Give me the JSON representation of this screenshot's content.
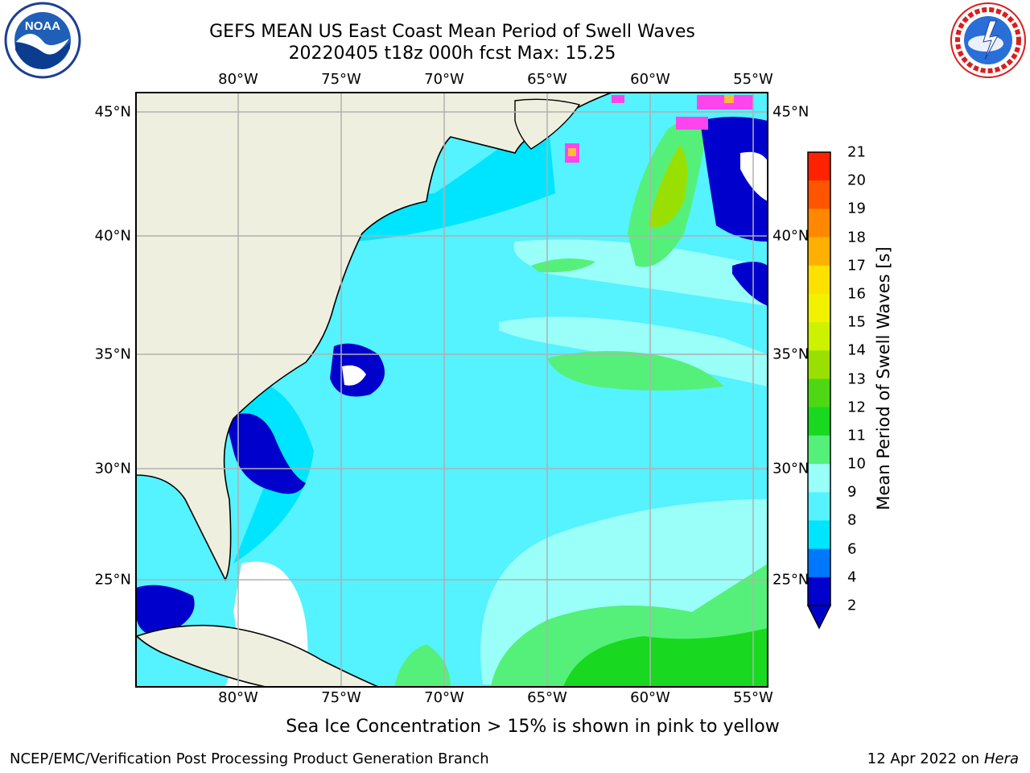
{
  "title": {
    "line1": "GEFS MEAN US East Coast Mean Period of Swell Waves",
    "line2": "20220405 t18z 000h fcst   Max: 15.25"
  },
  "logos": {
    "left": "NOAA",
    "right": "NATIONAL WEATHER SERVICE"
  },
  "map": {
    "lon_ticks": [
      "80°W",
      "75°W",
      "70°W",
      "65°W",
      "60°W",
      "55°W"
    ],
    "lat_ticks": [
      "45°N",
      "40°N",
      "35°N",
      "30°N",
      "25°N"
    ],
    "colors": {
      "land": "#efefdf",
      "grid": "#b0b0b0",
      "coast": "#000000",
      "ice_pink": "#ff44ee",
      "ice_orange": "#ffbb33"
    }
  },
  "colorbar": {
    "title": "Mean Period of Swell Waves [s]",
    "levels": [
      "21",
      "20",
      "19",
      "18",
      "17",
      "16",
      "15",
      "14",
      "13",
      "12",
      "11",
      "10",
      "9",
      "8",
      "6",
      "4",
      "2"
    ],
    "colors": [
      "#0000cc",
      "#0077ff",
      "#00e5ff",
      "#55f2ff",
      "#99fff8",
      "#55f07a",
      "#18d91f",
      "#4ed814",
      "#99e000",
      "#ccf200",
      "#f2f200",
      "#ffe100",
      "#ffb000",
      "#ff8800",
      "#ff5500",
      "#ff2200",
      "#ff0000"
    ],
    "extend": "min"
  },
  "caption": "Sea Ice Concentration > 15% is shown in pink to yellow",
  "footer": {
    "left": "NCEP/EMC/Verification Post Processing Product Generation Branch",
    "right_date": "12 Apr 2022 on ",
    "right_host": "Hera"
  }
}
